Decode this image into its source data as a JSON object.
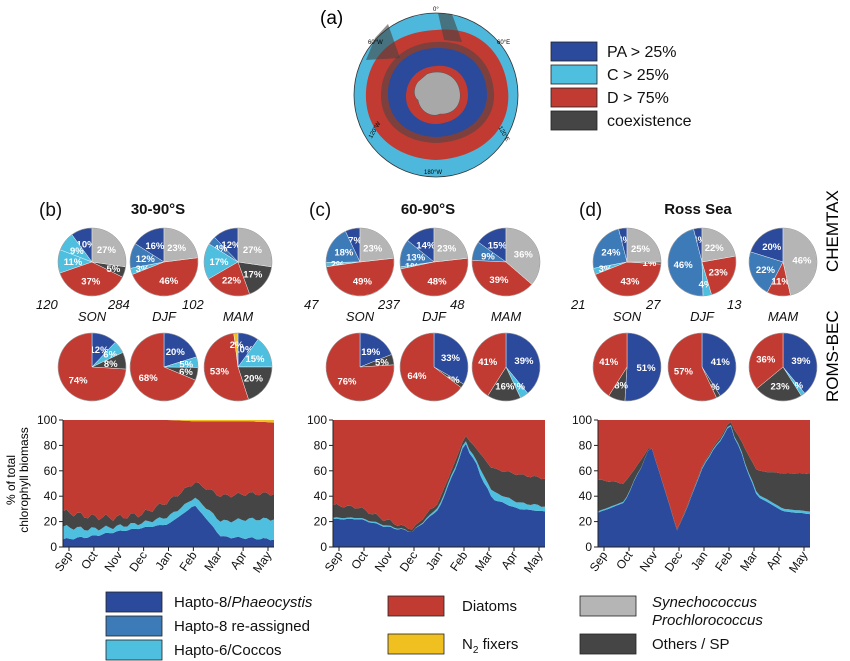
{
  "colors": {
    "phaeocystis": "#2b4a9b",
    "hapto8_reassigned": "#3d7ab8",
    "coccos": "#4fbfe0",
    "diatoms": "#c23b33",
    "n2fixers": "#f0c020",
    "synecho": "#b5b5b5",
    "others": "#454545",
    "map_ocean": "#4db8dc",
    "antarctica": "#a8a8a8"
  },
  "panel_a": {
    "label": "(a)",
    "legend": [
      "PA > 25%",
      "C > 25%",
      "D > 75%",
      "coexistence"
    ],
    "map_labels": [
      "0°",
      "60°W",
      "60°E",
      "120°W",
      "120°E",
      "180°W"
    ]
  },
  "row_labels": [
    "CHEMTAX",
    "ROMS-BEC"
  ],
  "y_axis_label_lines": [
    "% of total",
    "chlorophyll biomass"
  ],
  "chart_data": [
    {
      "type": "pie",
      "panel": "(b)",
      "title": "30-90°S",
      "seasons": [
        "SON",
        "DJF",
        "MAM"
      ],
      "sample_counts": [
        "120",
        "284",
        "102"
      ],
      "chemtax": [
        {
          "season": "SON",
          "slices": [
            [
              "phaeocystis",
              10
            ],
            [
              "coccos",
              9
            ],
            [
              "coccos",
              11
            ],
            [
              "diatoms",
              37
            ],
            [
              "others",
              5
            ],
            [
              "synecho",
              27
            ]
          ],
          "labels": [
            "10%",
            "9%",
            "11%",
            "37%",
            "5%",
            "27%"
          ]
        },
        {
          "season": "DJF",
          "slices": [
            [
              "phaeocystis",
              16
            ],
            [
              "hapto8_reassigned",
              12
            ],
            [
              "coccos",
              3
            ],
            [
              "diatoms",
              46
            ],
            [
              "synecho",
              23
            ]
          ],
          "labels": [
            "16%",
            "12%",
            "3%",
            "46%",
            "23%"
          ]
        },
        {
          "season": "MAM",
          "slices": [
            [
              "phaeocystis",
              12
            ],
            [
              "hapto8_reassigned",
              4
            ],
            [
              "coccos",
              17
            ],
            [
              "diatoms",
              22
            ],
            [
              "others",
              17
            ],
            [
              "synecho",
              27
            ]
          ],
          "labels": [
            "12%",
            "4%",
            "17%",
            "22%",
            "17%",
            "27%"
          ]
        }
      ],
      "roms": [
        {
          "season": "SON",
          "slices": [
            [
              "phaeocystis",
              12
            ],
            [
              "coccos",
              6
            ],
            [
              "others",
              8
            ],
            [
              "diatoms",
              74
            ]
          ],
          "labels": [
            "12%",
            "6%",
            "8%",
            "74%"
          ]
        },
        {
          "season": "DJF",
          "slices": [
            [
              "phaeocystis",
              20
            ],
            [
              "coccos",
              5
            ],
            [
              "others",
              6
            ],
            [
              "diatoms",
              68
            ]
          ],
          "labels": [
            "20%",
            "5%",
            "6%",
            "68%"
          ]
        },
        {
          "season": "MAM",
          "slices": [
            [
              "phaeocystis",
              10
            ],
            [
              "coccos",
              15
            ],
            [
              "others",
              20
            ],
            [
              "diatoms",
              53
            ],
            [
              "n2fixers",
              2
            ]
          ],
          "labels": [
            "10%",
            "15%",
            "20%",
            "53%",
            "2%"
          ]
        }
      ]
    },
    {
      "type": "pie",
      "panel": "(c)",
      "title": "60-90°S",
      "seasons": [
        "SON",
        "DJF",
        "MAM"
      ],
      "sample_counts": [
        "47",
        "237",
        "48"
      ],
      "chemtax": [
        {
          "season": "SON",
          "slices": [
            [
              "phaeocystis",
              7
            ],
            [
              "hapto8_reassigned",
              18
            ],
            [
              "coccos",
              2
            ],
            [
              "diatoms",
              49
            ],
            [
              "synecho",
              23
            ]
          ],
          "labels": [
            "7%",
            "18%",
            "2%",
            "49%",
            "23%"
          ]
        },
        {
          "season": "DJF",
          "slices": [
            [
              "phaeocystis",
              14
            ],
            [
              "hapto8_reassigned",
              13
            ],
            [
              "coccos",
              1
            ],
            [
              "diatoms",
              48
            ],
            [
              "synecho",
              23
            ]
          ],
          "labels": [
            "14%",
            "13%",
            "1%",
            "48%",
            "23%"
          ]
        },
        {
          "season": "MAM",
          "slices": [
            [
              "phaeocystis",
              15
            ],
            [
              "hapto8_reassigned",
              9
            ],
            [
              "diatoms",
              39
            ],
            [
              "synecho",
              36
            ]
          ],
          "labels": [
            "15%",
            "9%",
            "39%",
            "36%"
          ]
        }
      ],
      "roms": [
        {
          "season": "SON",
          "slices": [
            [
              "phaeocystis",
              19
            ],
            [
              "others",
              5
            ],
            [
              "diatoms",
              76
            ]
          ],
          "labels": [
            "19%",
            "5%",
            "76%"
          ]
        },
        {
          "season": "DJF",
          "slices": [
            [
              "phaeocystis",
              33
            ],
            [
              "others",
              2
            ],
            [
              "diatoms",
              64
            ]
          ],
          "labels": [
            "33%",
            "2%",
            "64%"
          ]
        },
        {
          "season": "MAM",
          "slices": [
            [
              "phaeocystis",
              39
            ],
            [
              "coccos",
              4
            ],
            [
              "others",
              16
            ],
            [
              "diatoms",
              41
            ]
          ],
          "labels": [
            "39%",
            "4%",
            "16%",
            "41%"
          ]
        }
      ]
    },
    {
      "type": "pie",
      "panel": "(d)",
      "title": "Ross Sea",
      "seasons": [
        "SON",
        "DJF",
        "MAM"
      ],
      "sample_counts": [
        "21",
        "27",
        "13"
      ],
      "chemtax": [
        {
          "season": "SON",
          "slices": [
            [
              "phaeocystis",
              4
            ],
            [
              "hapto8_reassigned",
              24
            ],
            [
              "coccos",
              3
            ],
            [
              "diatoms",
              43
            ],
            [
              "others",
              1
            ],
            [
              "synecho",
              25
            ]
          ],
          "labels": [
            "4%",
            "24%",
            "3%",
            "43%",
            "1%",
            "25%"
          ]
        },
        {
          "season": "DJF",
          "slices": [
            [
              "phaeocystis",
              4
            ],
            [
              "hapto8_reassigned",
              46
            ],
            [
              "coccos",
              4
            ],
            [
              "diatoms",
              23
            ],
            [
              "synecho",
              22
            ]
          ],
          "labels": [
            "4%",
            "46%",
            "4%",
            "23%",
            "22%"
          ]
        },
        {
          "season": "MAM",
          "slices": [
            [
              "phaeocystis",
              20
            ],
            [
              "hapto8_reassigned",
              22
            ],
            [
              "diatoms",
              11
            ],
            [
              "synecho",
              46
            ]
          ],
          "labels": [
            "20%",
            "22%",
            "11%",
            "46%"
          ]
        }
      ],
      "roms": [
        {
          "season": "SON",
          "slices": [
            [
              "phaeocystis",
              51
            ],
            [
              "others",
              8
            ],
            [
              "diatoms",
              41
            ]
          ],
          "labels": [
            "51%",
            "8%",
            "41%"
          ]
        },
        {
          "season": "DJF",
          "slices": [
            [
              "phaeocystis",
              41
            ],
            [
              "others",
              2
            ],
            [
              "diatoms",
              57
            ]
          ],
          "labels": [
            "41%",
            "2%",
            "57%"
          ]
        },
        {
          "season": "MAM",
          "slices": [
            [
              "phaeocystis",
              39
            ],
            [
              "coccos",
              2
            ],
            [
              "others",
              23
            ],
            [
              "diatoms",
              36
            ]
          ],
          "labels": [
            "39%",
            "2%",
            "23%",
            "36%"
          ]
        }
      ]
    },
    {
      "type": "area",
      "title": "30-90°S",
      "x": [
        "Sep",
        "Oct",
        "Nov",
        "Dec",
        "Jan",
        "Feb",
        "Mar",
        "Apr",
        "May"
      ],
      "ylim": [
        0,
        100
      ],
      "yticks": [
        0,
        20,
        40,
        60,
        80,
        100
      ],
      "ylabel": "% of total chlorophyll biomass",
      "series": [
        {
          "key": "phaeocystis",
          "values": [
            6,
            8,
            12,
            15,
            18,
            33,
            8,
            7,
            6
          ]
        },
        {
          "key": "coccos",
          "values": [
            10,
            6,
            4,
            4,
            6,
            6,
            12,
            15,
            16
          ]
        },
        {
          "key": "others",
          "values": [
            12,
            10,
            7,
            7,
            12,
            12,
            20,
            20,
            20
          ]
        },
        {
          "key": "diatoms",
          "values": [
            72,
            76,
            77,
            74,
            64,
            48,
            59,
            57,
            56
          ]
        },
        {
          "key": "n2fixers",
          "values": [
            0,
            0,
            0,
            0,
            0,
            1,
            1,
            1,
            2
          ]
        }
      ]
    },
    {
      "type": "area",
      "title": "60-90°S",
      "x": [
        "Sep",
        "Oct",
        "Nov",
        "Dec",
        "Jan",
        "Feb",
        "Mar",
        "Apr",
        "May"
      ],
      "ylim": [
        0,
        100
      ],
      "yticks": [
        0,
        20,
        40,
        60,
        80,
        100
      ],
      "series": [
        {
          "key": "phaeocystis",
          "values": [
            22,
            22,
            16,
            12,
            30,
            82,
            38,
            30,
            28
          ]
        },
        {
          "key": "coccos",
          "values": [
            1,
            1,
            1,
            0,
            2,
            2,
            6,
            5,
            4
          ]
        },
        {
          "key": "others",
          "values": [
            10,
            8,
            4,
            2,
            4,
            4,
            18,
            22,
            22
          ]
        },
        {
          "key": "diatoms",
          "values": [
            67,
            69,
            79,
            86,
            64,
            12,
            38,
            43,
            46
          ]
        }
      ]
    },
    {
      "type": "area",
      "title": "Ross Sea",
      "x": [
        "Sep",
        "Oct",
        "Nov",
        "Dec",
        "Jan",
        "Feb",
        "Mar",
        "Apr",
        "May"
      ],
      "ylim": [
        0,
        100
      ],
      "yticks": [
        0,
        20,
        40,
        60,
        80,
        100
      ],
      "series": [
        {
          "key": "phaeocystis",
          "values": [
            27,
            35,
            80,
            12,
            65,
            96,
            40,
            28,
            26
          ]
        },
        {
          "key": "coccos",
          "values": [
            1,
            1,
            0,
            0,
            1,
            1,
            2,
            2,
            2
          ]
        },
        {
          "key": "others",
          "values": [
            25,
            14,
            0,
            1,
            1,
            2,
            18,
            28,
            30
          ]
        },
        {
          "key": "diatoms",
          "values": [
            47,
            50,
            20,
            87,
            33,
            1,
            40,
            42,
            42
          ]
        }
      ]
    }
  ],
  "legend_bottom": {
    "items": [
      {
        "key": "phaeocystis",
        "lines": [
          "Hapto-8/",
          "Phaeocystis"
        ]
      },
      {
        "key": "hapto8_reassigned",
        "lines": [
          "Hapto-8 re-assigned"
        ]
      },
      {
        "key": "coccos",
        "lines": [
          "Hapto-6/Coccos"
        ]
      },
      {
        "key": "diatoms",
        "lines": [
          "Diatoms"
        ]
      },
      {
        "key": "n2fixers",
        "lines": [
          "N",
          "2",
          " fixers"
        ]
      },
      {
        "key": "synecho",
        "lines": [
          "Synechococcus",
          "Prochlorococcus"
        ]
      },
      {
        "key": "others",
        "lines": [
          "Others / SP"
        ]
      }
    ]
  }
}
